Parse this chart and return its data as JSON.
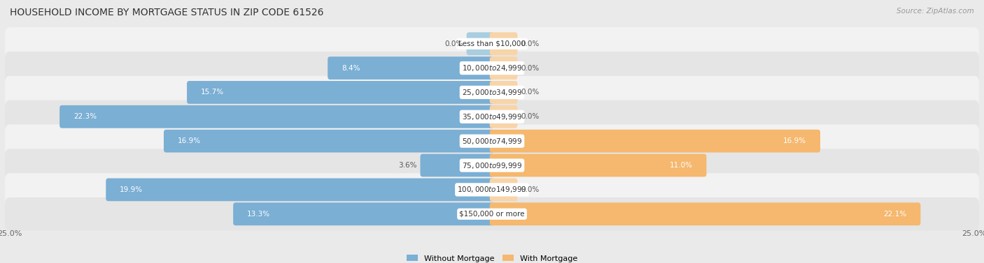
{
  "title": "HOUSEHOLD INCOME BY MORTGAGE STATUS IN ZIP CODE 61526",
  "source": "Source: ZipAtlas.com",
  "categories": [
    "Less than $10,000",
    "$10,000 to $24,999",
    "$25,000 to $34,999",
    "$35,000 to $49,999",
    "$50,000 to $74,999",
    "$75,000 to $99,999",
    "$100,000 to $149,999",
    "$150,000 or more"
  ],
  "without_mortgage": [
    0.0,
    8.4,
    15.7,
    22.3,
    16.9,
    3.6,
    19.9,
    13.3
  ],
  "with_mortgage": [
    0.0,
    0.0,
    0.0,
    0.0,
    16.9,
    11.0,
    0.0,
    22.1
  ],
  "color_without": "#7BAFD4",
  "color_without_light": "#A8CEDF",
  "color_with": "#F5B86E",
  "color_with_light": "#F8D4A8",
  "bg_color": "#EAEAEA",
  "row_bg_light": "#F2F2F2",
  "row_bg_dark": "#E5E5E5",
  "max_val": 25.0,
  "stub_val": 1.2,
  "title_fontsize": 10,
  "label_fontsize": 7.5,
  "cat_fontsize": 7.5,
  "axis_label_fontsize": 8.0,
  "source_fontsize": 7.5
}
